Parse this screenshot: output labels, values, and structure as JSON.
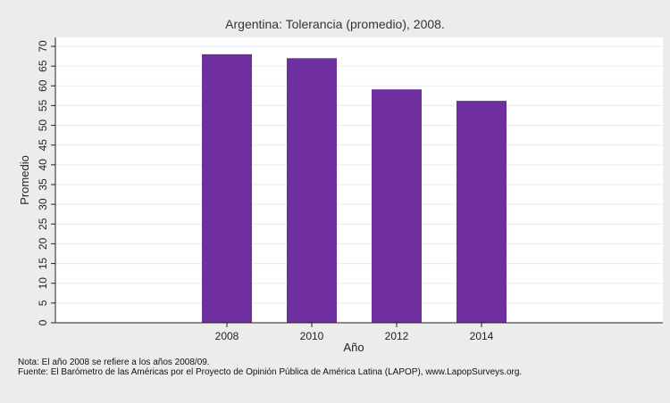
{
  "chart_data": {
    "type": "bar",
    "title": "Argentina: Tolerancia (promedio), 2008.",
    "xlabel": "Año",
    "ylabel": "Promedio",
    "categories": [
      "2008",
      "2010",
      "2012",
      "2014"
    ],
    "values": [
      68,
      67,
      59.1,
      56.2
    ],
    "ylim": [
      0,
      70
    ],
    "yticks": [
      0,
      5,
      10,
      15,
      20,
      25,
      30,
      35,
      40,
      45,
      50,
      55,
      60,
      65,
      70
    ],
    "grid": true,
    "legend": "none",
    "colors": {
      "bar": "#6f2f9f",
      "background": "#ececec",
      "plot_background": "#ffffff",
      "grid": "#e9e9e9"
    }
  },
  "notes": {
    "nota": "Nota: El año 2008 se refiere a los años 2008/09.",
    "fuente": "Fuente: El Barómetro de las Américas por el Proyecto de Opinión Pública de América Latina (LAPOP), www.LapopSurveys.org."
  }
}
